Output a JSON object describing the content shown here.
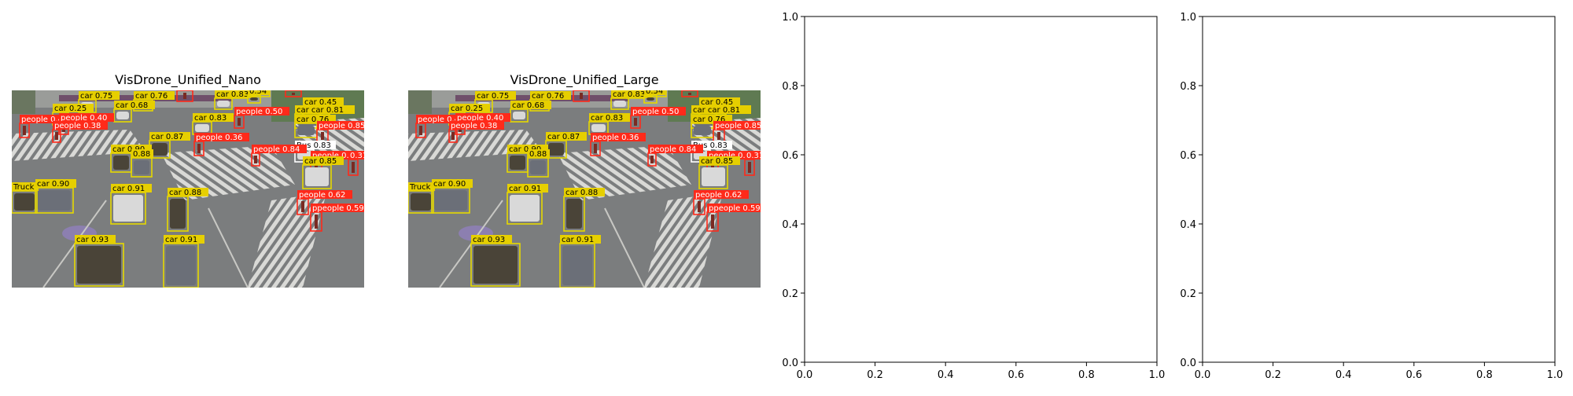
{
  "figure": {
    "panel_count": 4,
    "layout": "1 row x 4 columns"
  },
  "colors": {
    "car_box": "#e6d800",
    "car_label_bg": "#e6cf00",
    "people_box": "#ff2a1a",
    "people_label_bg": "#ff2a1a",
    "bus_box": "#ffffff",
    "truck_box": "#e6d800",
    "road": "#7b7d7e",
    "crosswalk": "#d9d9d6"
  },
  "chart_data": [
    {
      "type": "image",
      "title": "VisDrone_Unified_Nano",
      "axis": "off",
      "detections": [
        {
          "label": "car 0.75"
        },
        {
          "label": "car 0.76"
        },
        {
          "label": "people 0.35"
        },
        {
          "label": "car 0.45"
        },
        {
          "label": "0.43"
        },
        {
          "label": "0.26"
        },
        {
          "label": "car 0.83"
        },
        {
          "label": "0.54"
        },
        {
          "label": "car 0.25"
        },
        {
          "label": "car 0.68"
        },
        {
          "label": "car 0.45"
        },
        {
          "label": "car car 0.81"
        },
        {
          "label": "people 0.4"
        },
        {
          "label": "people 0.40"
        },
        {
          "label": "people 0.38"
        },
        {
          "label": "car 0.83"
        },
        {
          "label": "people 0.50"
        },
        {
          "label": "car 0.76"
        },
        {
          "label": "people 0.85"
        },
        {
          "label": "car 0.87"
        },
        {
          "label": "people 0.36"
        },
        {
          "label": "Bus 0.83"
        },
        {
          "label": "people 0.84"
        },
        {
          "label": "people 0.61"
        },
        {
          "label": "0.31"
        },
        {
          "label": "car 0.90"
        },
        {
          "label": "0.88"
        },
        {
          "label": "car 0.85"
        },
        {
          "label": "Truck"
        },
        {
          "label": "car 0.90"
        },
        {
          "label": "car 0.91"
        },
        {
          "label": "car 0.88"
        },
        {
          "label": "people 0.62"
        },
        {
          "label": "ppeople 0.59"
        },
        {
          "label": "car 0.93"
        },
        {
          "label": "car 0.91"
        }
      ]
    },
    {
      "type": "image",
      "title": "VisDrone_Unified_Large",
      "axis": "off",
      "detections": [
        {
          "label": "car 0.75"
        },
        {
          "label": "car 0.76"
        },
        {
          "label": "people 0.35"
        },
        {
          "label": "car 0.45"
        },
        {
          "label": "0.43"
        },
        {
          "label": "0.26"
        },
        {
          "label": "car 0.83"
        },
        {
          "label": "0.54"
        },
        {
          "label": "car 0.25"
        },
        {
          "label": "car 0.68"
        },
        {
          "label": "car 0.45"
        },
        {
          "label": "car car 0.81"
        },
        {
          "label": "people 0.4"
        },
        {
          "label": "people 0.40"
        },
        {
          "label": "people 0.38"
        },
        {
          "label": "car 0.83"
        },
        {
          "label": "people 0.50"
        },
        {
          "label": "car 0.76"
        },
        {
          "label": "people 0.85"
        },
        {
          "label": "car 0.87"
        },
        {
          "label": "people 0.36"
        },
        {
          "label": "Bus 0.83"
        },
        {
          "label": "people 0.84"
        },
        {
          "label": "people 0.61"
        },
        {
          "label": "0.31"
        },
        {
          "label": "car 0.90"
        },
        {
          "label": "0.88"
        },
        {
          "label": "car 0.85"
        },
        {
          "label": "Truck"
        },
        {
          "label": "car 0.90"
        },
        {
          "label": "car 0.91"
        },
        {
          "label": "car 0.88"
        },
        {
          "label": "people 0.62"
        },
        {
          "label": "ppeople 0.59"
        },
        {
          "label": "car 0.93"
        },
        {
          "label": "car 0.91"
        }
      ]
    },
    {
      "type": "scatter",
      "title": "",
      "series": [],
      "xlim": [
        0,
        1
      ],
      "ylim": [
        0,
        1
      ],
      "xticks": [
        "0.0",
        "0.2",
        "0.4",
        "0.6",
        "0.8",
        "1.0"
      ],
      "yticks": [
        "0.0",
        "0.2",
        "0.4",
        "0.6",
        "0.8",
        "1.0"
      ],
      "grid": false
    },
    {
      "type": "scatter",
      "title": "",
      "series": [],
      "xlim": [
        0,
        1
      ],
      "ylim": [
        0,
        1
      ],
      "xticks": [
        "0.0",
        "0.2",
        "0.4",
        "0.6",
        "0.8",
        "1.0"
      ],
      "yticks": [
        "0.0",
        "0.2",
        "0.4",
        "0.6",
        "0.8",
        "1.0"
      ],
      "grid": false
    }
  ]
}
